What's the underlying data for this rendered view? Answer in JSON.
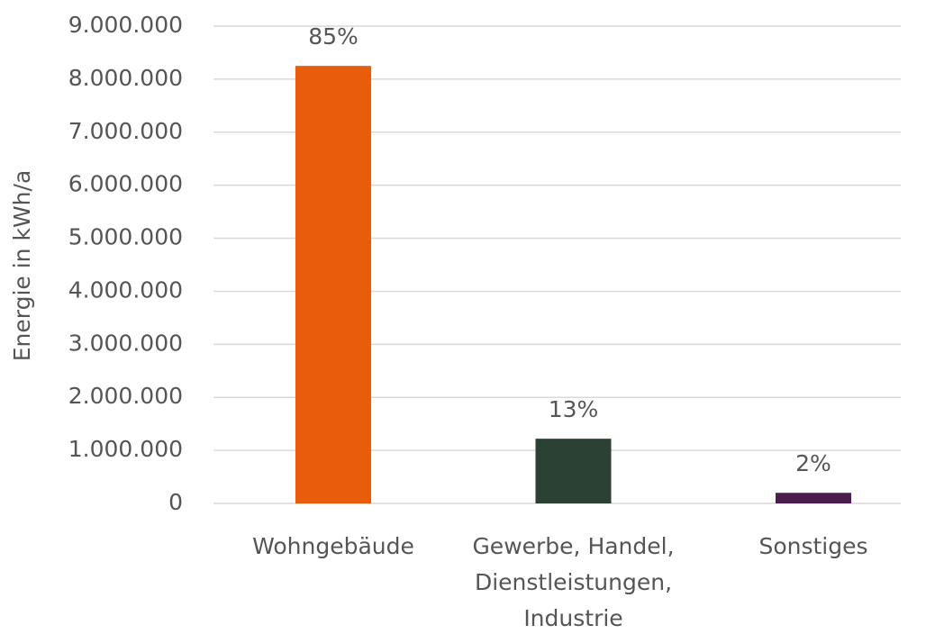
{
  "chart_data": {
    "type": "bar",
    "y_label": "Energie in kWh/a",
    "categories": [
      "Wohngebäude",
      "Gewerbe, Handel, Dienstleistungen, Industrie",
      "Sonstiges"
    ],
    "values": [
      8250000,
      1220000,
      200000
    ],
    "value_labels": [
      "85%",
      "13%",
      "2%"
    ],
    "colors": [
      "#e85d0c",
      "#2a4133",
      "#4a1f4f"
    ],
    "ylim": [
      0,
      9000000
    ],
    "yticks": [
      0,
      {
        "value": 1000000,
        "label": "1.000.000"
      },
      {
        "value": 2000000,
        "label": "2.000.000"
      },
      {
        "value": 3000000,
        "label": "3.000.000"
      },
      {
        "value": 4000000,
        "label": "4.000.000"
      },
      {
        "value": 5000000,
        "label": "5.000.000"
      },
      {
        "value": 6000000,
        "label": "6.000.000"
      },
      {
        "value": 7000000,
        "label": "7.000.000"
      },
      {
        "value": 8000000,
        "label": "8.000.000"
      },
      {
        "value": 9000000,
        "label": "9.000.000"
      }
    ],
    "grid": true
  }
}
